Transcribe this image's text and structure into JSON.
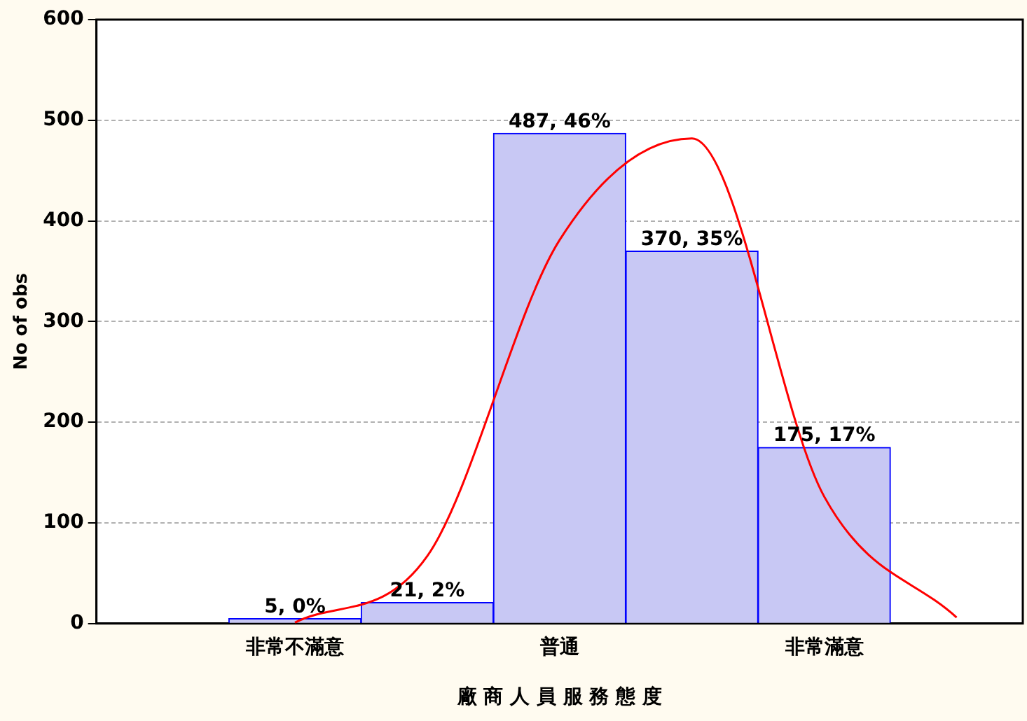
{
  "chart_data": {
    "type": "bar",
    "xlabel": "廠 商 人 員 服 務 態 度",
    "ylabel": "No of obs",
    "categories": [
      null,
      "非常不滿意",
      null,
      "普通",
      null,
      "非常滿意",
      null
    ],
    "values": [
      null,
      5,
      21,
      487,
      370,
      175,
      null
    ],
    "color": "#c8c8f4",
    "value_labels": [
      null,
      "5, 0%",
      "21, 2%",
      "487, 46%",
      "370, 35%",
      "175, 17%",
      null
    ],
    "series": [
      {
        "type": "line",
        "color": "#ff0000",
        "values": [
          null,
          1,
          67,
          381,
          482,
          126,
          6
        ]
      }
    ],
    "ylim": [
      0,
      600
    ],
    "yticks": [
      0,
      100,
      200,
      300,
      400,
      500,
      600
    ],
    "grid": "y",
    "legend": false,
    "marker": "none"
  }
}
